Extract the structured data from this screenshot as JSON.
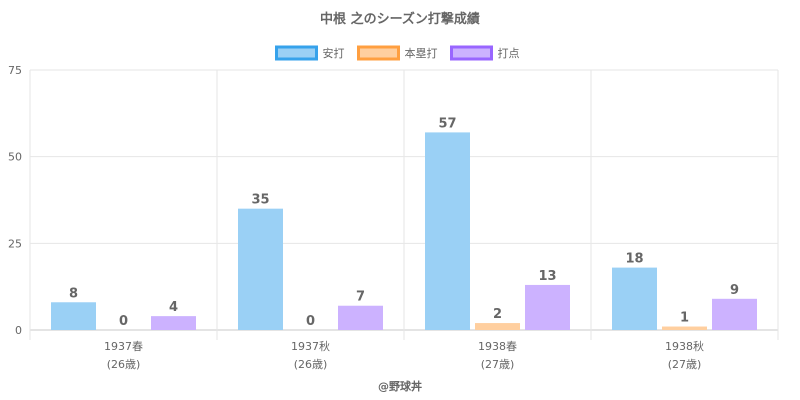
{
  "chart_data": {
    "type": "bar",
    "title": "中根 之のシーズン打撃成績",
    "categories": [
      "1937春",
      "1937秋",
      "1938春",
      "1938秋"
    ],
    "category_sublabels": [
      "(26歳)",
      "(26歳)",
      "(27歳)",
      "(27歳)"
    ],
    "series": [
      {
        "name": "安打",
        "values": [
          8,
          35,
          57,
          18
        ],
        "color": "#9ad0f5",
        "border": "#36a2eb"
      },
      {
        "name": "本塁打",
        "values": [
          0,
          0,
          2,
          1
        ],
        "color": "#ffcf9f",
        "border": "#ff9f40"
      },
      {
        "name": "打点",
        "values": [
          4,
          7,
          13,
          9
        ],
        "color": "#ccb2ff",
        "border": "#9966ff"
      }
    ],
    "ylim": [
      0,
      75
    ],
    "yticks": [
      0,
      25,
      50,
      75
    ],
    "grid": true,
    "legend_position": "top"
  },
  "credit": "@野球丼"
}
